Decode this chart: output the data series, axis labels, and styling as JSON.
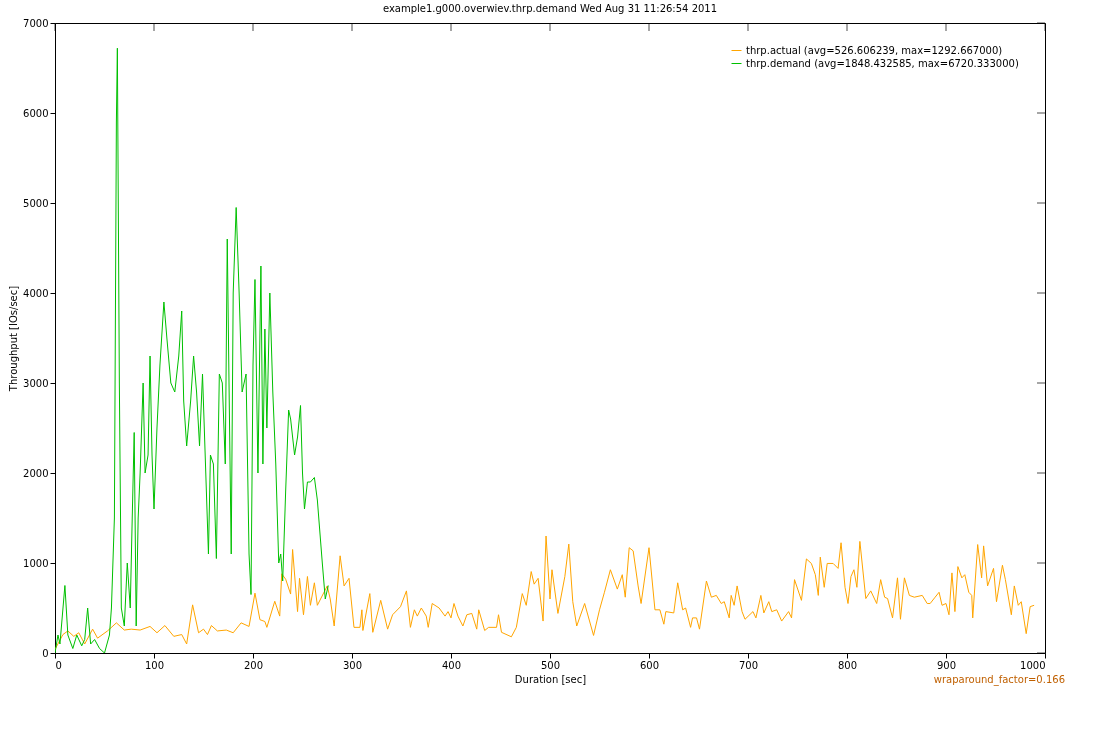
{
  "chart_data": {
    "type": "line",
    "title": "example1.g000.overwiev.thrp.demand Wed Aug 31 11:26:54 2011",
    "xlabel": "Duration [sec]",
    "ylabel": "Throughput [IOs/sec]",
    "xlim": [
      0,
      1000
    ],
    "ylim": [
      0,
      7000
    ],
    "xticks": [
      0,
      100,
      200,
      300,
      400,
      500,
      600,
      700,
      800,
      900,
      1000
    ],
    "yticks": [
      0,
      1000,
      2000,
      3000,
      4000,
      5000,
      6000,
      7000
    ],
    "grid": false,
    "legend": "top right",
    "marker": "none",
    "line_style": "solid",
    "annotations": [
      "wraparound_factor=0.166"
    ],
    "series": [
      {
        "name": "thrp.actual  (avg=526.606239, max=1292.667000)",
        "color": "#ffa500",
        "x": [
          0,
          8,
          13,
          19,
          24,
          30,
          38,
          43,
          53,
          62,
          70,
          77,
          86,
          96,
          103,
          111,
          120,
          128,
          133,
          139,
          145,
          150,
          154,
          158,
          164,
          173,
          180,
          188,
          196,
          202,
          207,
          212,
          214,
          222,
          227,
          229,
          233,
          238,
          240,
          245,
          247,
          251,
          255,
          258,
          262,
          265,
          275,
          278,
          282,
          288,
          292,
          297,
          302,
          308,
          310,
          311,
          318,
          321,
          329,
          336,
          341,
          349,
          355,
          359,
          363,
          366,
          370,
          375,
          377,
          381,
          388,
          394,
          397,
          400,
          403,
          407,
          412,
          416,
          421,
          426,
          428,
          434,
          438,
          446,
          448,
          451,
          461,
          466,
          472,
          476,
          481,
          484,
          488,
          493,
          496,
          500,
          502,
          508,
          515,
          519,
          523,
          527,
          535,
          544,
          550,
          555,
          561,
          568,
          573,
          576,
          580,
          584,
          589,
          592,
          600,
          606,
          611,
          615,
          617,
          625,
          629,
          634,
          637,
          642,
          644,
          648,
          651,
          658,
          663,
          668,
          673,
          676,
          681,
          683,
          686,
          689,
          694,
          697,
          705,
          708,
          713,
          716,
          721,
          724,
          729,
          734,
          741,
          744,
          747,
          754,
          759,
          764,
          768,
          771,
          773,
          777,
          780,
          786,
          791,
          794,
          798,
          801,
          804,
          807,
          810,
          813,
          819,
          824,
          830,
          834,
          838,
          841,
          846,
          851,
          854,
          858,
          863,
          868,
          876,
          881,
          884,
          889,
          893,
          896,
          900,
          903,
          906,
          909,
          912,
          916,
          919,
          923,
          926,
          927,
          932,
          936,
          938,
          942,
          948,
          951,
          957,
          960,
          966,
          969,
          973,
          976,
          981,
          985,
          989
        ],
        "values": [
          40,
          205,
          245,
          185,
          225,
          100,
          265,
          165,
          245,
          335,
          255,
          265,
          255,
          295,
          225,
          305,
          185,
          205,
          100,
          535,
          225,
          265,
          205,
          305,
          245,
          255,
          225,
          335,
          295,
          665,
          370,
          350,
          285,
          575,
          410,
          880,
          820,
          655,
          1150,
          460,
          830,
          425,
          850,
          530,
          780,
          530,
          745,
          600,
          300,
          1080,
          745,
          830,
          285,
          285,
          480,
          250,
          660,
          230,
          585,
          265,
          425,
          515,
          690,
          285,
          480,
          410,
          500,
          410,
          285,
          550,
          500,
          410,
          460,
          390,
          550,
          410,
          300,
          425,
          440,
          265,
          480,
          250,
          285,
          285,
          425,
          230,
          180,
          285,
          660,
          530,
          905,
          765,
          830,
          355,
          1300,
          600,
          925,
          440,
          850,
          1210,
          570,
          300,
          550,
          195,
          480,
          675,
          925,
          710,
          870,
          620,
          1170,
          1135,
          745,
          550,
          1170,
          480,
          480,
          320,
          460,
          445,
          780,
          480,
          500,
          285,
          390,
          390,
          265,
          800,
          620,
          640,
          550,
          570,
          390,
          640,
          530,
          745,
          460,
          375,
          460,
          390,
          640,
          445,
          570,
          460,
          480,
          355,
          460,
          390,
          815,
          585,
          1045,
          995,
          870,
          640,
          1065,
          730,
          995,
          995,
          940,
          1225,
          730,
          550,
          850,
          925,
          730,
          1240,
          605,
          690,
          550,
          815,
          620,
          605,
          390,
          835,
          375,
          835,
          640,
          620,
          640,
          550,
          550,
          620,
          675,
          530,
          550,
          425,
          890,
          460,
          960,
          835,
          870,
          675,
          640,
          390,
          1205,
          835,
          1190,
          745,
          940,
          570,
          975,
          815,
          425,
          745,
          530,
          570,
          215,
          515,
          530
        ]
      },
      {
        "name": "thrp.demand  (avg=1848.432585, max=6720.333000)",
        "color": "#00c000",
        "x": [
          0,
          3,
          5,
          10,
          13,
          18,
          22,
          27,
          30,
          33,
          36,
          40,
          45,
          50,
          55,
          57,
          60,
          62,
          63,
          65,
          67,
          70,
          73,
          76,
          78,
          80,
          82,
          84,
          86,
          89,
          91,
          94,
          96,
          98,
          100,
          103,
          106,
          110,
          113,
          117,
          121,
          125,
          128,
          130,
          133,
          137,
          140,
          143,
          146,
          149,
          152,
          155,
          157,
          160,
          163,
          166,
          169,
          172,
          174,
          176,
          178,
          180,
          183,
          186,
          189,
          191,
          193,
          196,
          198,
          200,
          202,
          205,
          208,
          210,
          212,
          214,
          217,
          220,
          223,
          226,
          228,
          230,
          233,
          236,
          238,
          242,
          245,
          248,
          250,
          252,
          255,
          258,
          262,
          265,
          270,
          273,
          276
        ],
        "values": [
          0,
          200,
          100,
          750,
          200,
          50,
          200,
          80,
          150,
          500,
          100,
          150,
          50,
          0,
          200,
          500,
          1500,
          5900,
          6720,
          3000,
          500,
          300,
          1000,
          500,
          1500,
          2450,
          300,
          1500,
          2000,
          3000,
          2000,
          2200,
          3300,
          2200,
          1600,
          2500,
          3200,
          3900,
          3500,
          3000,
          2900,
          3300,
          3800,
          2800,
          2300,
          2800,
          3300,
          2900,
          2300,
          3100,
          2100,
          1100,
          2200,
          2100,
          1050,
          3100,
          3000,
          2100,
          4600,
          2800,
          1100,
          4000,
          4950,
          4000,
          2900,
          3000,
          3100,
          1100,
          650,
          3200,
          4150,
          2000,
          4300,
          2100,
          3600,
          2500,
          4000,
          2900,
          2100,
          1000,
          1100,
          800,
          1800,
          2700,
          2600,
          2200,
          2400,
          2750,
          2000,
          1600,
          1900,
          1900,
          1950,
          1700,
          1000,
          600,
          750
        ]
      }
    ]
  }
}
